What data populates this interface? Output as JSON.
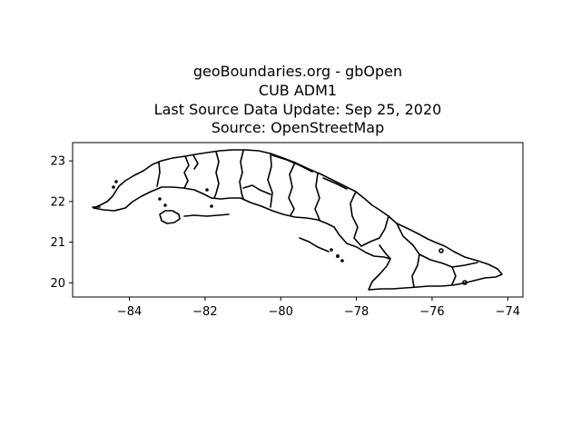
{
  "figure": {
    "title_lines": [
      "geoBoundaries.org - gbOpen",
      "CUB ADM1",
      "Last Source Data Update: Sep 25, 2020",
      "Source: OpenStreetMap"
    ]
  },
  "map": {
    "country": "CUB",
    "level": "ADM1",
    "x_range": [
      -85.5,
      -73.6
    ],
    "y_range": [
      19.65,
      23.45
    ],
    "x_ticks": [
      -84,
      -82,
      -80,
      -78,
      -76,
      -74
    ],
    "y_ticks": [
      20,
      21,
      22,
      23
    ],
    "x_tick_labels": [
      "−84",
      "−82",
      "−80",
      "−78",
      "−76",
      "−74"
    ],
    "y_tick_labels": [
      "20",
      "21",
      "22",
      "23"
    ],
    "boundary_color": "#000000"
  }
}
